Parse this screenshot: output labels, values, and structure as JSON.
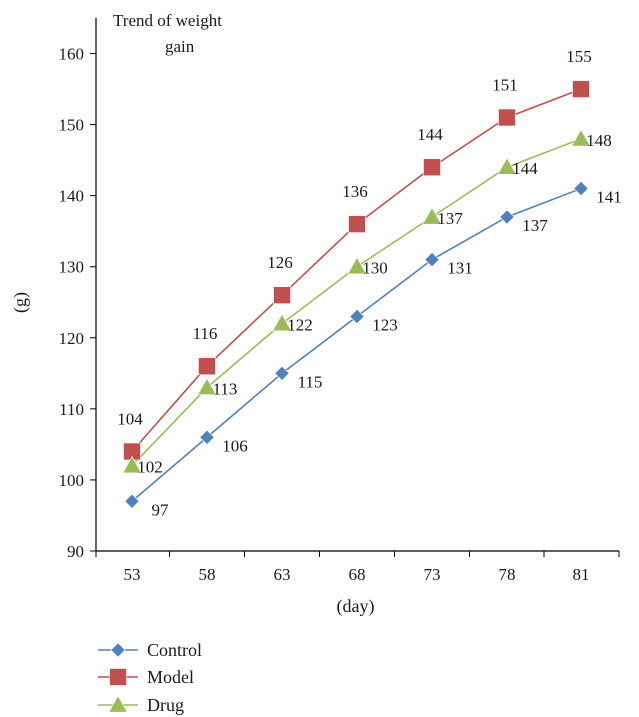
{
  "chart_data": {
    "type": "line",
    "title_lines": [
      "Trend of weight",
      "gain"
    ],
    "xlabel": "(day)",
    "ylabel": "(g)",
    "categories": [
      "53",
      "58",
      "63",
      "68",
      "73",
      "78",
      "81"
    ],
    "ylim": [
      90,
      165
    ],
    "yticks": [
      90,
      100,
      110,
      120,
      130,
      140,
      150,
      160
    ],
    "grid": false,
    "legend_position": "bottom-left",
    "series": [
      {
        "name": "Control",
        "marker": "diamond",
        "color": "#4F81BD",
        "values": [
          97,
          106,
          115,
          123,
          131,
          137,
          141
        ]
      },
      {
        "name": "Model",
        "marker": "square",
        "color": "#C0504D",
        "values": [
          104,
          116,
          126,
          136,
          144,
          151,
          155
        ]
      },
      {
        "name": "Drug",
        "marker": "triangle",
        "color": "#9BBB59",
        "values": [
          102,
          113,
          122,
          130,
          137,
          144,
          148
        ]
      }
    ]
  }
}
